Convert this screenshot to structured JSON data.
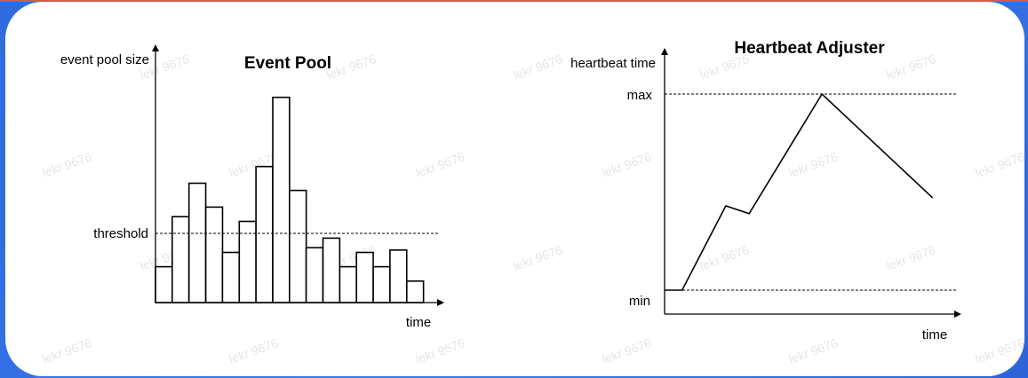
{
  "watermark": "lekr 9676",
  "chart_data": [
    {
      "type": "bar",
      "title": "Event Pool",
      "ylabel": "event pool size",
      "xlabel": "time",
      "reference_lines": [
        {
          "label": "threshold",
          "value": 29
        }
      ],
      "ylim": [
        0,
        100
      ],
      "values": [
        15,
        36,
        50,
        40,
        21,
        34,
        57,
        86,
        47,
        23,
        27,
        15,
        21,
        15,
        22,
        9
      ],
      "bar_fill": "#ffffff",
      "bar_stroke": "#000000"
    },
    {
      "type": "line",
      "title": "Heartbeat Adjuster",
      "ylabel": "heartbeat time",
      "xlabel": "time",
      "reference_lines": [
        {
          "label": "max",
          "value": 1
        },
        {
          "label": "min",
          "value": 0
        }
      ],
      "ylim": [
        0,
        1
      ],
      "x": [
        0,
        0.06,
        0.21,
        0.29,
        0.54,
        0.92
      ],
      "y": [
        0,
        0,
        0.43,
        0.39,
        1,
        0.47
      ],
      "line_color": "#000000"
    }
  ]
}
